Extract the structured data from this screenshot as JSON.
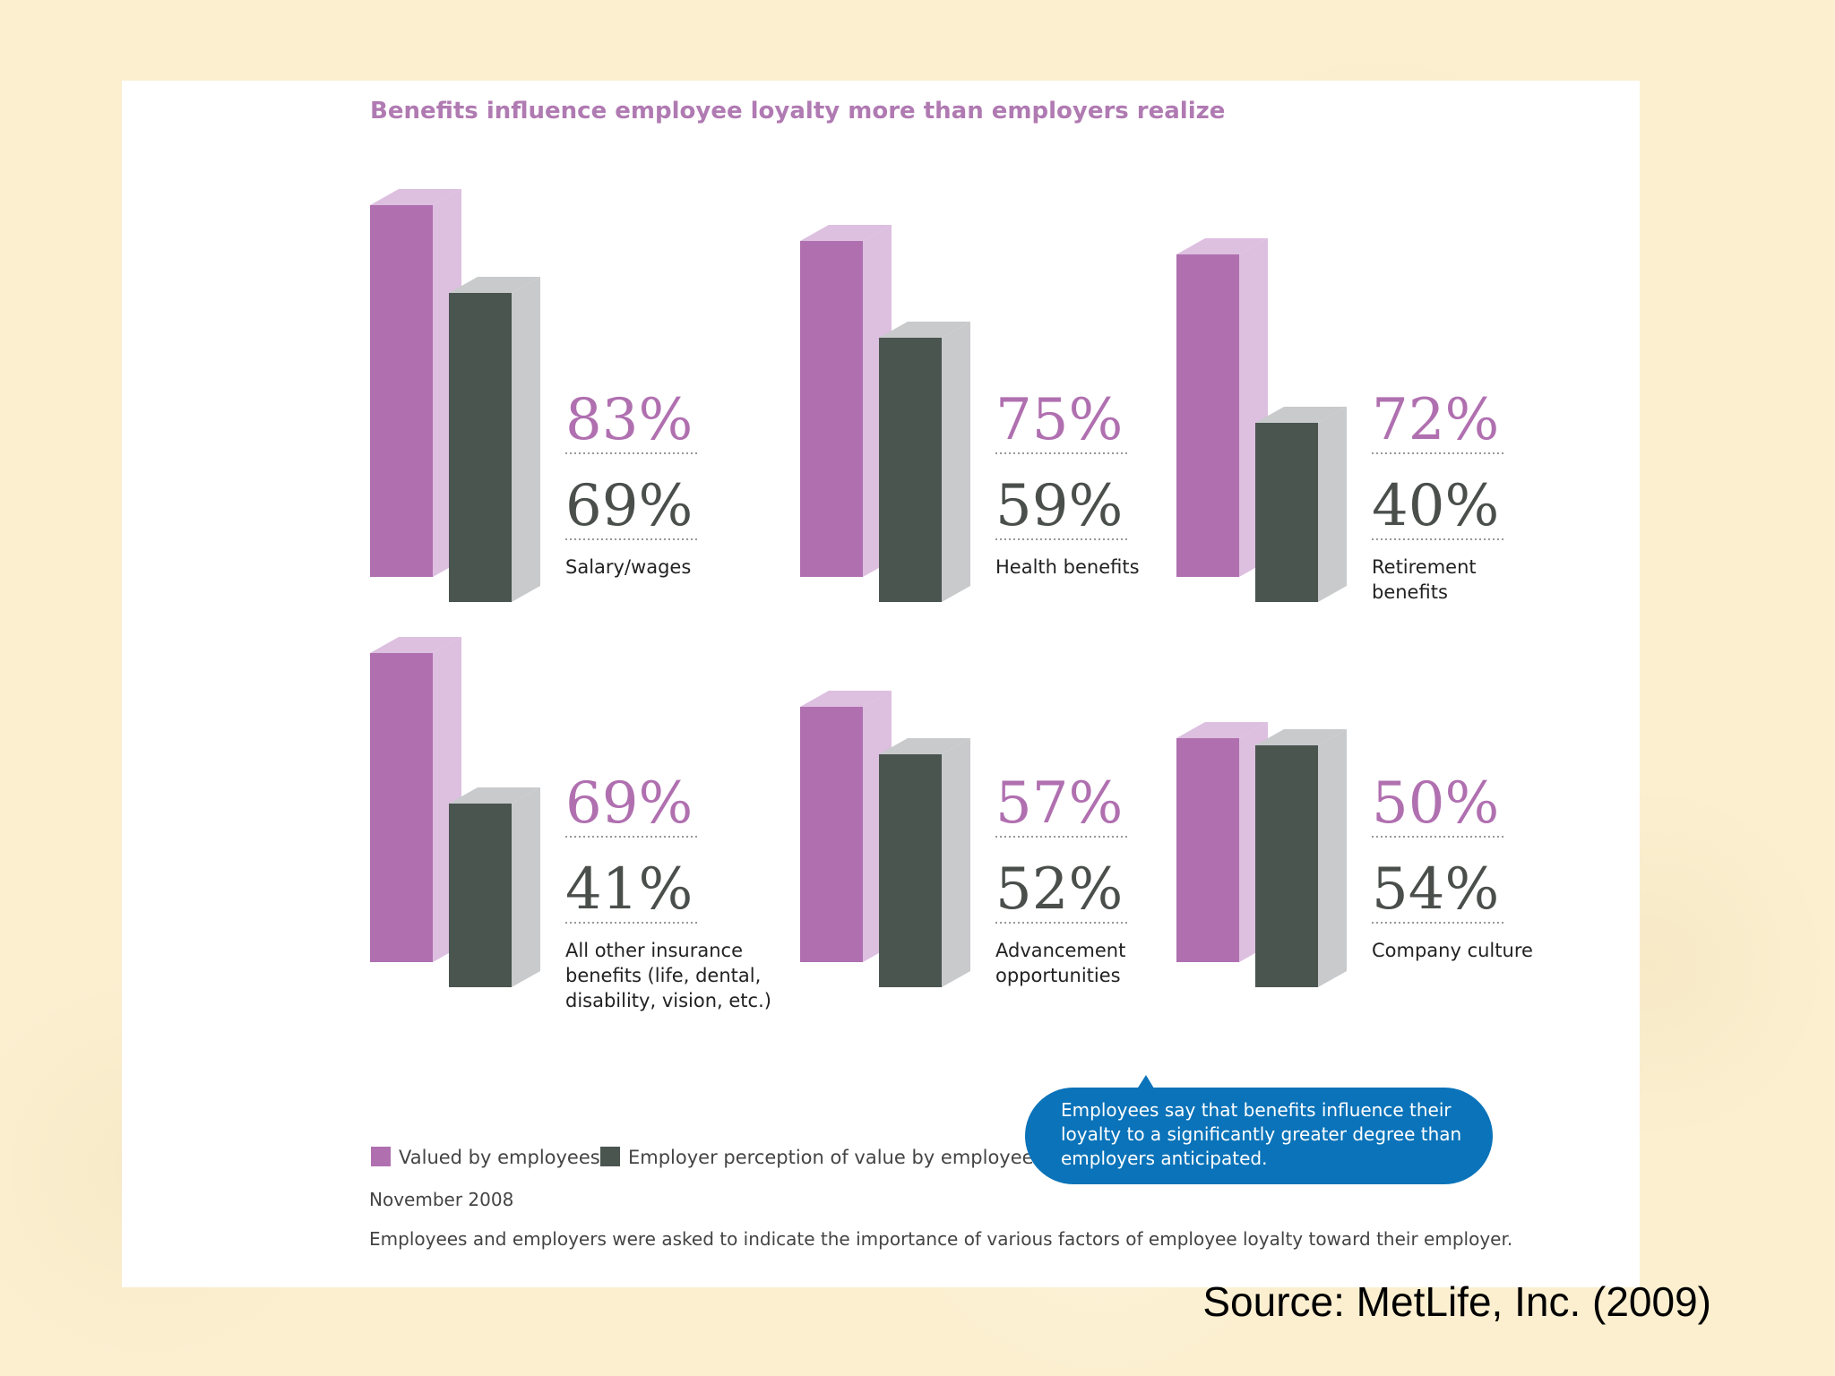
{
  "chart_data": {
    "type": "bar",
    "title": "Benefits influence employee loyalty more than employers realize",
    "categories": [
      [
        "Salary/wages"
      ],
      [
        "Health benefits"
      ],
      [
        "Retirement",
        "benefits"
      ],
      [
        "All other insurance",
        "benefits (life, dental,",
        "disability, vision, etc.)"
      ],
      [
        "Advancement",
        "opportunities"
      ],
      [
        "Company culture"
      ]
    ],
    "series": [
      {
        "name": "Valued by employees",
        "values": [
          83,
          75,
          72,
          69,
          57,
          50
        ],
        "labels": [
          "83%",
          "75%",
          "72%",
          "69%",
          "57%",
          "50%"
        ]
      },
      {
        "name": "Employer perception of value by employee",
        "values": [
          69,
          59,
          40,
          41,
          52,
          54
        ],
        "labels": [
          "69%",
          "59%",
          "40%",
          "41%",
          "52%",
          "54%"
        ]
      }
    ],
    "ylim": [
      0,
      100
    ],
    "colors": {
      "employees": "#b070b0",
      "employees_side": "#ddbfe0",
      "employer": "#4a5550",
      "employer_side": "#c8cacc"
    },
    "legend_position": "bottom-left",
    "grid": false
  },
  "callout": [
    "Employees say that benefits influence their",
    "loyalty to a significantly greater degree than",
    "employers anticipated."
  ],
  "callout_color": "#0a73b9",
  "date": "November 2008",
  "note": "Employees and employers were asked to indicate the importance of various factors of employee loyalty toward their employer.",
  "source": "Source: MetLife, Inc. (2009)"
}
